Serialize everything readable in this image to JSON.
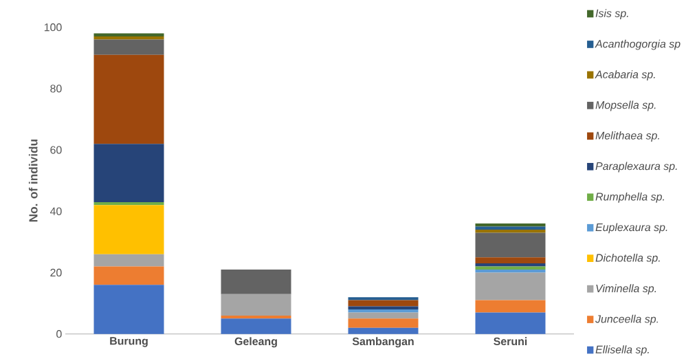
{
  "chart_data": {
    "type": "bar",
    "stacked": true,
    "ylabel": "No. of individu",
    "categories": [
      "Burung",
      "Geleang",
      "Sambangan",
      "Seruni"
    ],
    "ylim": [
      0,
      100
    ],
    "yticks": [
      0,
      20,
      40,
      60,
      80,
      100
    ],
    "grid": false,
    "legend": "right",
    "series": [
      {
        "name": "Ellisella sp.",
        "color": "#4472c4",
        "values": [
          16,
          5,
          2,
          7
        ]
      },
      {
        "name": "Junceella sp.",
        "color": "#ed7d31",
        "values": [
          6,
          1,
          3,
          4
        ]
      },
      {
        "name": "Viminella sp.",
        "color": "#a5a5a5",
        "values": [
          4,
          7,
          2,
          9
        ]
      },
      {
        "name": "Dichotella sp.",
        "color": "#ffc000",
        "values": [
          16,
          0,
          0,
          0
        ]
      },
      {
        "name": "Euplexaura sp.",
        "color": "#5b9bd5",
        "values": [
          0,
          0,
          1,
          1
        ]
      },
      {
        "name": "Rumphella sp.",
        "color": "#70ad47",
        "values": [
          1,
          0,
          0,
          1
        ]
      },
      {
        "name": "Paraplexaura sp.",
        "color": "#264478",
        "values": [
          19,
          0,
          1,
          1
        ]
      },
      {
        "name": "Melithaea sp.",
        "color": "#9e480e",
        "values": [
          29,
          0,
          2,
          2
        ]
      },
      {
        "name": "Mopsella sp.",
        "color": "#636363",
        "values": [
          5,
          8,
          0,
          8
        ]
      },
      {
        "name": "Acabaria sp.",
        "color": "#997300",
        "values": [
          1,
          0,
          0,
          1
        ]
      },
      {
        "name": "Acanthogorgia sp",
        "color": "#255e91",
        "values": [
          0,
          0,
          1,
          1
        ]
      },
      {
        "name": "Isis sp.",
        "color": "#43682b",
        "values": [
          1,
          0,
          0,
          1
        ]
      }
    ]
  }
}
